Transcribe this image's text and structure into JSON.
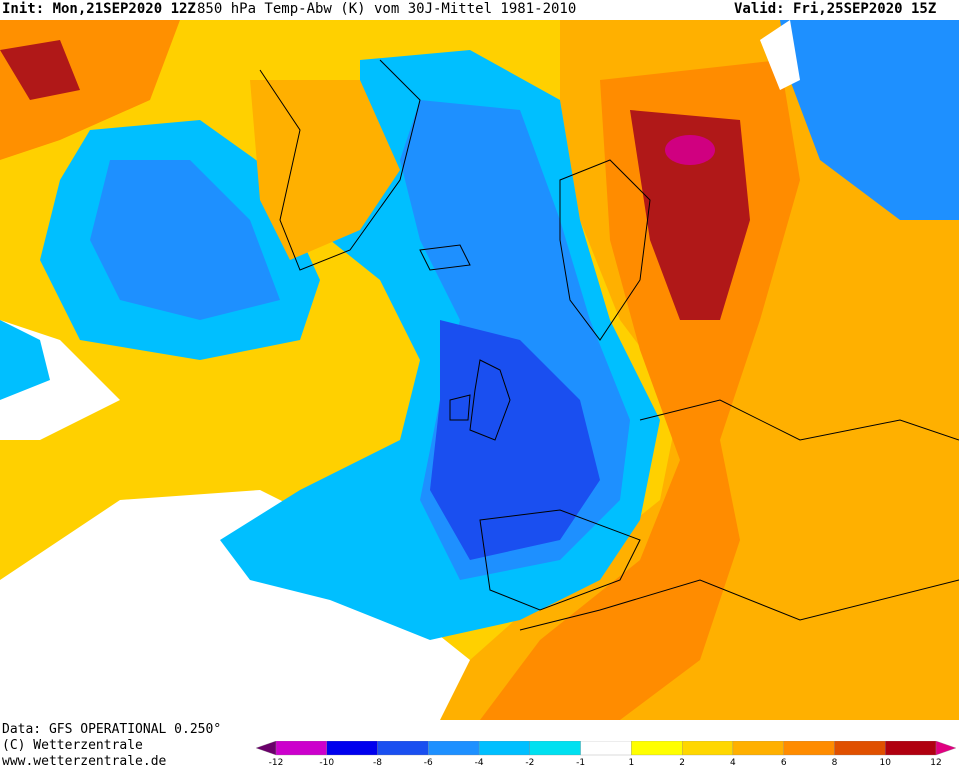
{
  "header": {
    "init": "Init: Mon,21SEP2020 12Z",
    "title": "850 hPa Temp-Abw (K) vom 30J-Mittel 1981-2010",
    "valid": "Valid: Fri,25SEP2020 15Z"
  },
  "footer": {
    "data_line": "Data: GFS OPERATIONAL 0.250°",
    "copyright": "(C) Wetterzentrale",
    "url": "www.wetterzentrale.de"
  },
  "legend": {
    "ticks": [
      "-12",
      "-10",
      "-8",
      "-6",
      "-4",
      "-2",
      "-1",
      "1",
      "2",
      "4",
      "6",
      "8",
      "10",
      "12"
    ],
    "colors": [
      "#6a006a",
      "#cc00cc",
      "#0000ee",
      "#1a4ff0",
      "#1e90ff",
      "#00bfff",
      "#00e0f0",
      "#ffffff",
      "#ffff00",
      "#ffd700",
      "#ffb000",
      "#ff8c00",
      "#e05000",
      "#b00010",
      "#e00080"
    ]
  },
  "map_colors": {
    "cold_deep": "#1a4ff0",
    "cold_mid": "#1e90ff",
    "cold_light": "#00bfff",
    "neutral": "#ffffff",
    "warm_light": "#ffe000",
    "warm_mid": "#ffb000",
    "warm_strong": "#ff8c00",
    "hot": "#c01818"
  }
}
